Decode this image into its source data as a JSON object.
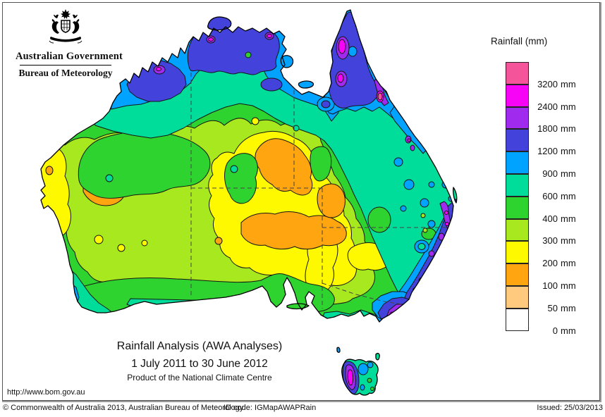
{
  "header": {
    "government": "Australian Government",
    "bureau": "Bureau of Meteorology"
  },
  "legend": {
    "title": "Rainfall (mm)",
    "entries": [
      {
        "key": "gte3200",
        "color": "#F4549A",
        "label": "3200 mm"
      },
      {
        "key": "r2400",
        "color": "#F704F7",
        "label": "2400 mm"
      },
      {
        "key": "r1800",
        "color": "#A02BEE",
        "label": "1800 mm"
      },
      {
        "key": "r1200",
        "color": "#4343DC",
        "label": "1200 mm"
      },
      {
        "key": "r900",
        "color": "#00A3FF",
        "label": "900 mm"
      },
      {
        "key": "r600",
        "color": "#00DC9A",
        "label": "600 mm"
      },
      {
        "key": "r400",
        "color": "#2FD32F",
        "label": "400 mm"
      },
      {
        "key": "r300",
        "color": "#A8E81E",
        "label": "300 mm"
      },
      {
        "key": "r200",
        "color": "#FFF900",
        "label": "200 mm"
      },
      {
        "key": "r100",
        "color": "#FFA510",
        "label": "100 mm"
      },
      {
        "key": "r50",
        "color": "#FFC97E",
        "label": "50 mm"
      },
      {
        "key": "r0",
        "color": "#FFFFFF",
        "label": "0 mm"
      }
    ]
  },
  "titles": {
    "main": "Rainfall Analysis (AWA Analyses)",
    "period": "1 July 2011 to 30 June 2012",
    "product": "Product of the National Climate Centre"
  },
  "links": {
    "url": "http://www.bom.gov.au"
  },
  "footer": {
    "copyright": "© Commonwealth of Australia 2013, Australian Bureau of Meteorology",
    "id_code": "ID code: IGMapAWAPRain",
    "issued": "Issued: 25/03/2013"
  }
}
